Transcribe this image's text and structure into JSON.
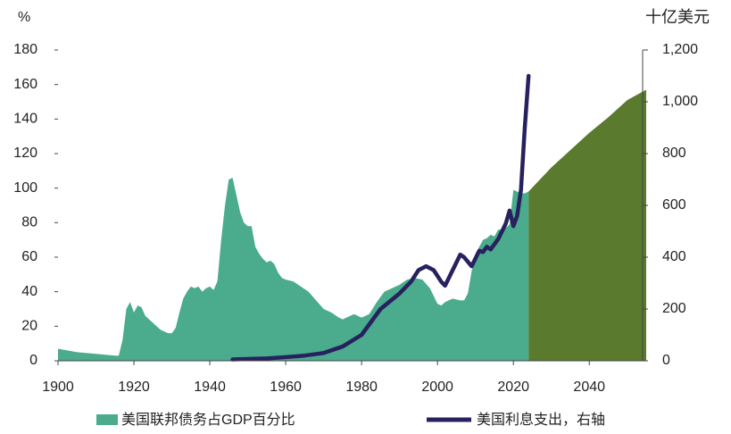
{
  "chart_data": {
    "type": "combo",
    "y_label": "%",
    "y2_label": "十亿美元",
    "xlim": [
      1900,
      2055
    ],
    "xticks": [
      1900,
      1920,
      1940,
      1960,
      1980,
      2000,
      2020,
      2040
    ],
    "ylim": [
      0,
      180
    ],
    "yticks": [
      0,
      20,
      40,
      60,
      80,
      100,
      120,
      140,
      160,
      180
    ],
    "y2lim": [
      0,
      1200
    ],
    "y2ticks": [
      0,
      200,
      400,
      600,
      800,
      {
        "value": 1000,
        "label": "1,000"
      },
      {
        "value": 1200,
        "label": "1,200"
      }
    ],
    "series": [
      {
        "name": "美国联邦债务占GDP百分比",
        "type": "area",
        "color": "#4aab8d",
        "x": [
          1900,
          1905,
          1910,
          1915,
          1916,
          1917,
          1918,
          1919,
          1920,
          1921,
          1922,
          1923,
          1925,
          1927,
          1929,
          1930,
          1931,
          1932,
          1933,
          1934,
          1935,
          1936,
          1937,
          1938,
          1939,
          1940,
          1941,
          1942,
          1943,
          1944,
          1945,
          1946,
          1947,
          1948,
          1949,
          1950,
          1951,
          1952,
          1953,
          1954,
          1955,
          1956,
          1957,
          1958,
          1959,
          1960,
          1962,
          1964,
          1966,
          1968,
          1970,
          1972,
          1974,
          1975,
          1976,
          1978,
          1980,
          1982,
          1984,
          1986,
          1988,
          1990,
          1992,
          1994,
          1996,
          1998,
          2000,
          2001,
          2002,
          2004,
          2006,
          2007,
          2008,
          2009,
          2010,
          2011,
          2012,
          2013,
          2014,
          2015,
          2016,
          2017,
          2018,
          2019,
          2020,
          2021,
          2022,
          2023,
          2024
        ],
        "values": [
          7,
          5,
          4,
          3,
          3,
          12,
          30,
          34,
          28,
          32,
          31,
          26,
          22,
          18,
          16,
          16,
          19,
          28,
          36,
          40,
          43,
          42,
          43,
          40,
          42,
          43,
          41,
          46,
          70,
          90,
          105,
          106,
          96,
          86,
          80,
          78,
          78,
          66,
          62,
          59,
          57,
          58,
          56,
          51,
          48,
          47,
          46,
          43,
          40,
          35,
          30,
          28,
          25,
          24,
          25,
          27,
          25,
          27,
          34,
          40,
          42,
          44,
          47,
          48,
          47,
          42,
          33,
          32,
          34,
          36,
          35,
          35,
          39,
          52,
          61,
          66,
          70,
          71,
          73,
          72,
          76,
          76,
          77,
          79,
          99,
          98,
          97,
          97,
          98
        ]
      },
      {
        "type": "area",
        "color": "#5a7a2e",
        "x": [
          2024,
          2030,
          2035,
          2040,
          2045,
          2050,
          2055
        ],
        "values": [
          98,
          112,
          122,
          132,
          141,
          151,
          157
        ]
      },
      {
        "name": "美国利息支出，右轴",
        "type": "line",
        "axis": "y2",
        "color": "#27215e",
        "x": [
          1946,
          1950,
          1955,
          1960,
          1965,
          1970,
          1975,
          1980,
          1985,
          1990,
          1993,
          1995,
          1997,
          1999,
          2001,
          2002,
          2004,
          2006,
          2007,
          2009,
          2011,
          2012,
          2013,
          2014,
          2016,
          2018,
          2019,
          2020,
          2021,
          2022,
          2023,
          2024
        ],
        "values": [
          5,
          7,
          9,
          14,
          20,
          30,
          55,
          100,
          200,
          260,
          305,
          350,
          365,
          350,
          305,
          290,
          350,
          410,
          400,
          365,
          425,
          420,
          440,
          430,
          470,
          530,
          580,
          520,
          560,
          660,
          900,
          1100
        ]
      }
    ]
  }
}
